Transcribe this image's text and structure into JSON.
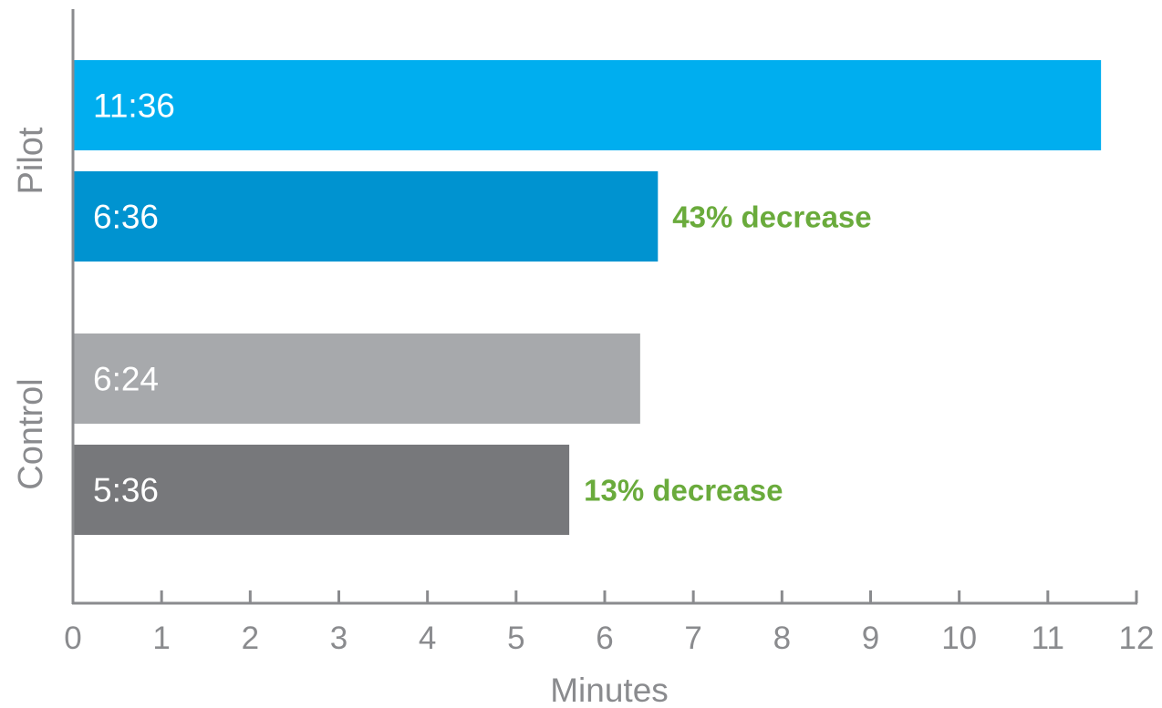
{
  "chart_data": {
    "type": "bar",
    "orientation": "horizontal",
    "xlabel": "Minutes",
    "xlim": [
      0,
      12
    ],
    "xticks": [
      "0",
      "1",
      "2",
      "3",
      "4",
      "5",
      "6",
      "7",
      "8",
      "9",
      "10",
      "11",
      "12"
    ],
    "grid": false,
    "groups": [
      {
        "name": "Pilot",
        "bars": [
          {
            "value": 11.6,
            "label": "11:36",
            "color": "#00aeef"
          },
          {
            "value": 6.6,
            "label": "6:36",
            "color": "#0093d0"
          }
        ],
        "annotation": "43% decrease"
      },
      {
        "name": "Control",
        "bars": [
          {
            "value": 6.4,
            "label": "6:24",
            "color": "#a7a9ac"
          },
          {
            "value": 5.6,
            "label": "5:36",
            "color": "#77787b"
          }
        ],
        "annotation": "13% decrease"
      }
    ],
    "colors": {
      "annotation": "#6aab3c",
      "axis": "#8a8b8e"
    }
  }
}
